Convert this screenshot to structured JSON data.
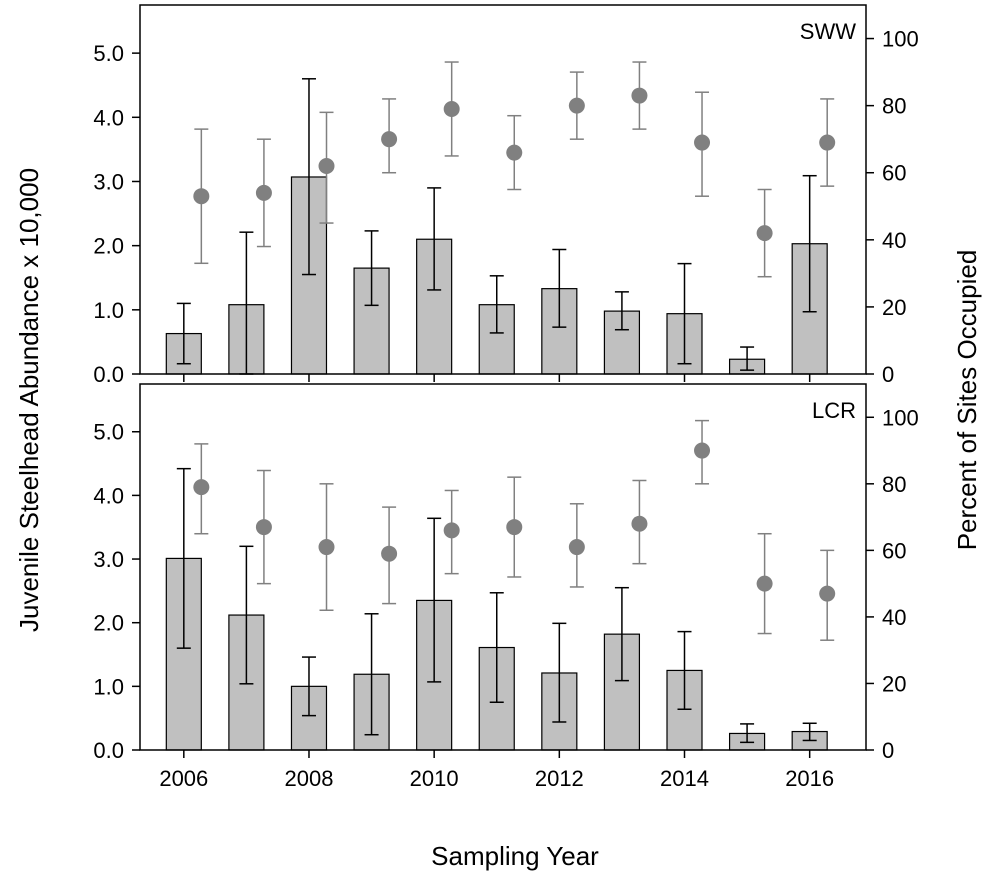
{
  "figure": {
    "ylabel_left": "Juvenile Steelhead Abundance x 10,000",
    "ylabel_right": "Percent of Sites Occupied",
    "xlabel": "Sampling Year"
  },
  "chart_data": [
    {
      "type": "bar",
      "panel": "SWW",
      "label": "SWW",
      "categories": [
        "2006",
        "2007",
        "2008",
        "2009",
        "2010",
        "2011",
        "2012",
        "2013",
        "2014",
        "2015",
        "2016"
      ],
      "x_ticks": [
        "2006",
        "2008",
        "2010",
        "2012",
        "2014",
        "2016"
      ],
      "xlim": [
        2005.3,
        2016.9
      ],
      "series": [
        {
          "axis": "left",
          "type": "bar",
          "values": [
            0.63,
            1.08,
            3.07,
            1.65,
            2.1,
            1.08,
            1.33,
            0.98,
            0.94,
            0.23,
            2.03
          ],
          "error_low": [
            0.16,
            0.0,
            1.55,
            1.07,
            1.31,
            0.64,
            0.73,
            0.69,
            0.16,
            0.06,
            0.97
          ],
          "error_high": [
            1.1,
            2.21,
            4.6,
            2.23,
            2.9,
            1.53,
            1.94,
            1.28,
            1.72,
            0.42,
            3.09
          ]
        },
        {
          "axis": "right",
          "type": "scatter",
          "x_offset": 0.28,
          "values": [
            53,
            54,
            62,
            70,
            79,
            66,
            80,
            83,
            69,
            42,
            69
          ],
          "error_low": [
            33,
            38,
            45,
            60,
            65,
            55,
            70,
            73,
            53,
            29,
            56
          ],
          "error_high": [
            73,
            70,
            78,
            82,
            93,
            77,
            90,
            93,
            84,
            55,
            82
          ]
        }
      ],
      "ylim_left": [
        0,
        5.75
      ],
      "yticks_left": [
        "0.0",
        "1.0",
        "2.0",
        "3.0",
        "4.0",
        "5.0"
      ],
      "ylim_right": [
        0,
        110
      ],
      "yticks_right": [
        "0",
        "20",
        "40",
        "60",
        "80",
        "100"
      ],
      "colors": {
        "bar": "#c0c0c0",
        "point": "#808080",
        "error_point": "#808080",
        "error_bar": "#000000"
      }
    },
    {
      "type": "bar",
      "panel": "LCR",
      "label": "LCR",
      "categories": [
        "2006",
        "2007",
        "2008",
        "2009",
        "2010",
        "2011",
        "2012",
        "2013",
        "2014",
        "2015",
        "2016"
      ],
      "x_ticks": [
        "2006",
        "2008",
        "2010",
        "2012",
        "2014",
        "2016"
      ],
      "xlim": [
        2005.3,
        2016.9
      ],
      "series": [
        {
          "axis": "left",
          "type": "bar",
          "values": [
            3.01,
            2.12,
            1.0,
            1.19,
            2.35,
            1.61,
            1.21,
            1.82,
            1.25,
            0.26,
            0.29
          ],
          "error_low": [
            1.6,
            1.04,
            0.54,
            0.24,
            1.07,
            0.75,
            0.44,
            1.09,
            0.64,
            0.12,
            0.15
          ],
          "error_high": [
            4.42,
            3.2,
            1.46,
            2.14,
            3.64,
            2.47,
            1.99,
            2.55,
            1.86,
            0.41,
            0.42
          ]
        },
        {
          "axis": "right",
          "type": "scatter",
          "x_offset": 0.28,
          "values": [
            79,
            67,
            61,
            59,
            66,
            67,
            61,
            68,
            90,
            50,
            47
          ],
          "error_low": [
            65,
            50,
            42,
            44,
            53,
            52,
            49,
            56,
            80,
            35,
            33
          ],
          "error_high": [
            92,
            84,
            80,
            73,
            78,
            82,
            74,
            81,
            99,
            65,
            60
          ]
        }
      ],
      "ylim_left": [
        0,
        5.75
      ],
      "yticks_left": [
        "0.0",
        "1.0",
        "2.0",
        "3.0",
        "4.0",
        "5.0"
      ],
      "ylim_right": [
        0,
        110
      ],
      "yticks_right": [
        "0",
        "20",
        "40",
        "60",
        "80",
        "100"
      ],
      "colors": {
        "bar": "#c0c0c0",
        "point": "#808080",
        "error_point": "#808080",
        "error_bar": "#000000"
      }
    }
  ]
}
